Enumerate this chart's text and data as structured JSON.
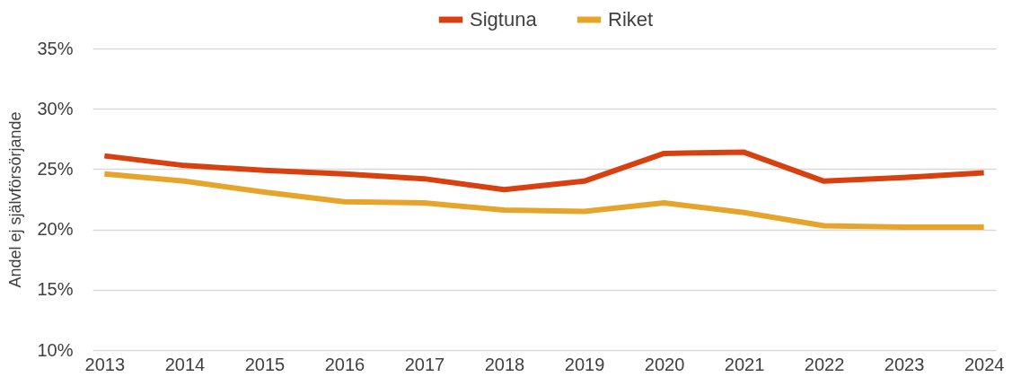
{
  "chart_data": {
    "type": "line",
    "ylabel": "Andel ej självförsörjande",
    "categories": [
      "2013",
      "2014",
      "2015",
      "2016",
      "2017",
      "2018",
      "2019",
      "2020",
      "2021",
      "2022",
      "2023",
      "2024"
    ],
    "series": [
      {
        "name": "Sigtuna",
        "color": "#d9400f",
        "values": [
          26.1,
          25.3,
          24.9,
          24.6,
          24.2,
          23.3,
          24.0,
          26.3,
          26.4,
          24.0,
          24.3,
          24.7
        ]
      },
      {
        "name": "Riket",
        "color": "#e6a52a",
        "values": [
          24.6,
          24.0,
          23.1,
          22.3,
          22.2,
          21.6,
          21.5,
          22.2,
          21.4,
          20.3,
          20.2,
          20.2
        ]
      }
    ],
    "ylim": [
      10,
      35
    ],
    "yticks": [
      {
        "value": 10,
        "label": "10%"
      },
      {
        "value": 15,
        "label": "15%"
      },
      {
        "value": 20,
        "label": "20%"
      },
      {
        "value": 25,
        "label": "25%"
      },
      {
        "value": 30,
        "label": "30%"
      },
      {
        "value": 35,
        "label": "35%"
      }
    ],
    "grid": "y",
    "legend": "top",
    "marker": "none",
    "line_style": "solid"
  }
}
